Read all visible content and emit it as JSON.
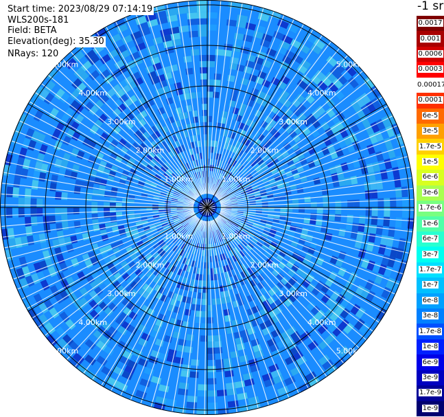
{
  "info": {
    "start_time": "Start time: 2023/08/29 07:14:19",
    "instrument": "WLS200s-181",
    "field": "Field: BETA",
    "elevation": "Elevation(deg): 35.30",
    "nrays": "NRays: 120"
  },
  "colorbar": {
    "unit": "-1 sr",
    "ticks": [
      "0.0017",
      "0.001",
      "0.0006",
      "0.0003",
      "0.00017",
      "0.0001",
      "6e-5",
      "3e-5",
      "1.7e-5",
      "1e-5",
      "6e-6",
      "3e-6",
      "1.7e-6",
      "1e-6",
      "6e-7",
      "3e-7",
      "1.7e-7",
      "1e-7",
      "6e-8",
      "3e-8",
      "1.7e-8",
      "1e-8",
      "6e-9",
      "3e-9",
      "1.7e-9",
      "1e-9"
    ],
    "colors": [
      "#7f0000",
      "#a80000",
      "#d00000",
      "#ff0000",
      "#ffffff",
      "#ff3000",
      "#ff6a00",
      "#ffa000",
      "#ffd000",
      "#ffff00",
      "#d8ff20",
      "#a8ff50",
      "#78ff80",
      "#50ffa8",
      "#28ffd0",
      "#00fff0",
      "#00e0ff",
      "#00c0ff",
      "#00a0ff",
      "#0080ff",
      "#0050ff",
      "#0020ff",
      "#0000e8",
      "#0000c0",
      "#000098",
      "#000070"
    ]
  },
  "rings": {
    "labels": [
      "1.00km",
      "2.00km",
      "3.00km",
      "4.00km",
      "5.00km"
    ]
  },
  "theme": {
    "field_base": "#1a8cff",
    "field_light": "#2aa8f0",
    "field_dark": "#1060e0"
  }
}
